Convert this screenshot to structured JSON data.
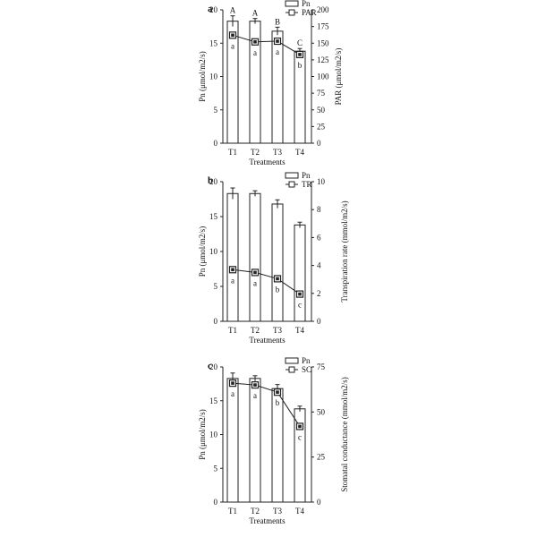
{
  "chart_data": [
    {
      "panel": "a",
      "type": "bar",
      "categories": [
        "T1",
        "T2",
        "T3",
        "T4"
      ],
      "xlabel": "Treatments",
      "ylabel": "Pn (μmol/m2/s)",
      "y2label": "PAR (μmol/m2/s)",
      "ylim": [
        0,
        20
      ],
      "yticks": [
        0,
        5,
        10,
        15,
        20
      ],
      "y2lim": [
        0,
        200
      ],
      "y2ticks": [
        0,
        25,
        50,
        75,
        100,
        125,
        150,
        175,
        200
      ],
      "legend_position": "top-right",
      "bar_series": {
        "name": "Pn",
        "values": [
          18.3,
          18.3,
          16.8,
          13.8
        ],
        "errors": [
          0.8,
          0.4,
          0.6,
          0.4
        ],
        "labels": [
          "A",
          "A",
          "B",
          "C"
        ]
      },
      "line_series": {
        "name": "PAR",
        "values": [
          162,
          152,
          153,
          133
        ],
        "errors": [
          4,
          2,
          3,
          3
        ],
        "labels": [
          "a",
          "a",
          "a",
          "b"
        ]
      }
    },
    {
      "panel": "b",
      "type": "bar",
      "categories": [
        "T1",
        "T2",
        "T3",
        "T4"
      ],
      "xlabel": "Treatments",
      "ylabel": "Pn (μmol/m2/s)",
      "y2label": "Transpiration rate (mmol/m2/s)",
      "ylim": [
        0,
        20
      ],
      "yticks": [
        0,
        5,
        10,
        15,
        20
      ],
      "y2lim": [
        0,
        10
      ],
      "y2ticks": [
        0,
        2,
        4,
        6,
        8,
        10
      ],
      "legend_position": "top-right",
      "bar_series": {
        "name": "Pn",
        "values": [
          18.3,
          18.3,
          16.8,
          13.8
        ],
        "errors": [
          0.8,
          0.4,
          0.6,
          0.4
        ],
        "labels": [
          "",
          "",
          "",
          ""
        ]
      },
      "line_series": {
        "name": "TR",
        "values": [
          3.7,
          3.5,
          3.05,
          1.95
        ],
        "errors": [
          0.1,
          0.1,
          0.1,
          0.1
        ],
        "labels": [
          "a",
          "a",
          "b",
          "c"
        ]
      }
    },
    {
      "panel": "c",
      "type": "bar",
      "categories": [
        "T1",
        "T2",
        "T3",
        "T4"
      ],
      "xlabel": "Treatments",
      "ylabel": "Pn (μmol/m2/s)",
      "y2label": "Stomatal conductance (mmol/m2/s)",
      "ylim": [
        0,
        20
      ],
      "yticks": [
        0,
        5,
        10,
        15,
        20
      ],
      "y2lim": [
        0,
        75
      ],
      "y2ticks": [
        0,
        25,
        50,
        75
      ],
      "legend_position": "top-right",
      "bar_series": {
        "name": "Pn",
        "values": [
          18.3,
          18.3,
          16.8,
          13.8
        ],
        "errors": [
          0.8,
          0.4,
          0.6,
          0.4
        ],
        "labels": [
          "",
          "",
          "",
          ""
        ]
      },
      "line_series": {
        "name": "SC",
        "values": [
          66,
          65,
          61,
          42
        ],
        "errors": [
          1.5,
          1.5,
          1.5,
          1.5
        ],
        "labels": [
          "a",
          "a",
          "b",
          "c"
        ]
      }
    }
  ]
}
